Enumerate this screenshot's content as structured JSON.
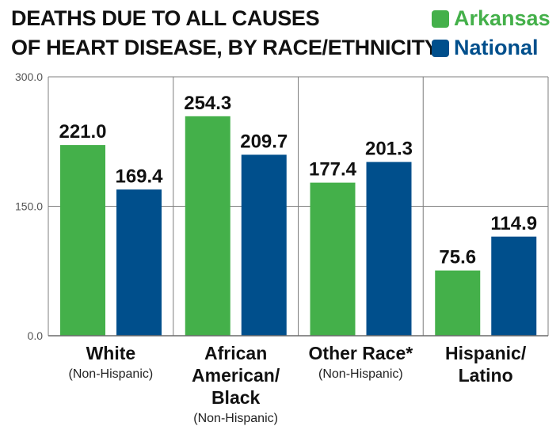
{
  "title": [
    "DEATHS DUE TO ALL CAUSES",
    "OF HEART DISEASE, BY RACE/ETHNICITY"
  ],
  "legend": [
    {
      "label": "Arkansas",
      "color": "#44b04a"
    },
    {
      "label": "National",
      "color": "#004f8c"
    }
  ],
  "chart_data": {
    "type": "bar",
    "categories": [
      "White",
      "African American/ Black",
      "Other Race*",
      "Hispanic/ Latino"
    ],
    "category_labels": [
      {
        "lines": [
          "White"
        ],
        "sub": "(Non-Hispanic)"
      },
      {
        "lines": [
          "African",
          "American/",
          "Black"
        ],
        "sub": "(Non-Hispanic)"
      },
      {
        "lines": [
          "Other Race*"
        ],
        "sub": "(Non-Hispanic)"
      },
      {
        "lines": [
          "Hispanic/",
          "Latino"
        ],
        "sub": ""
      }
    ],
    "series": [
      {
        "name": "Arkansas",
        "color": "#44b04a",
        "values": [
          221.0,
          254.3,
          177.4,
          75.6
        ],
        "labels": [
          "221.0",
          "254.3",
          "177.4",
          "75.6"
        ]
      },
      {
        "name": "National",
        "color": "#004f8c",
        "values": [
          169.4,
          209.7,
          201.3,
          114.9
        ],
        "labels": [
          "169.4",
          "209.7",
          "201.3",
          "114.9"
        ]
      }
    ],
    "ylim": [
      0,
      300
    ],
    "yticks": [
      0,
      150,
      300
    ],
    "ytick_labels": [
      "0.0",
      "150.0",
      "300.0"
    ],
    "grid": true
  }
}
